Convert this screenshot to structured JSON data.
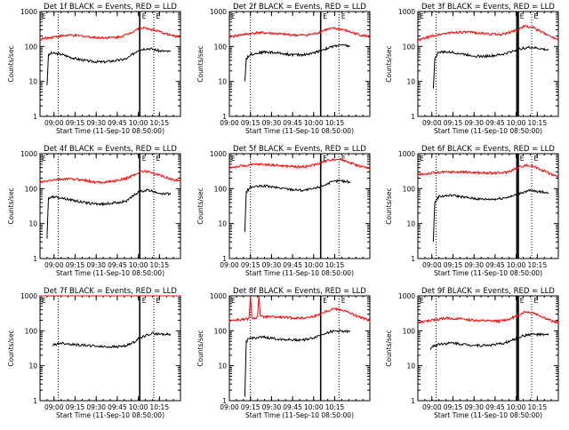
{
  "chart_data": [
    {
      "type": "line",
      "title": "Det 1f BLACK = Events, RED = LLD",
      "xlabel": "Start Time (11-Sep-10 08:50:00)",
      "ylabel": "Counts/sec",
      "yscale": "log",
      "ylim": [
        1,
        1000
      ],
      "x_ticks": [
        "09:00",
        "09:15",
        "09:30",
        "09:45",
        "10:00",
        "10:15"
      ],
      "y_ticks": [
        "1",
        "10",
        "100",
        "1000"
      ],
      "xlim_min": [
        0,
        100
      ],
      "tick_min": [
        10,
        25,
        40,
        55,
        70,
        85
      ],
      "dotted_lines_min": [
        13,
        81
      ],
      "solid_lines_min": [
        71
      ],
      "markers": [
        "E",
        "E"
      ],
      "marker_min": [
        72,
        82
      ],
      "series": [
        {
          "name": "",
          "color": "#000000",
          "start_min": 5,
          "end_min": 93,
          "x": [
            5,
            6,
            8,
            15,
            25,
            35,
            45,
            55,
            62,
            66,
            70,
            76,
            80,
            85,
            92
          ],
          "y": [
            8,
            55,
            65,
            60,
            45,
            38,
            36,
            40,
            45,
            60,
            80,
            88,
            85,
            75,
            72
          ]
        },
        {
          "name": "",
          "color": "#ff0000",
          "start_min": 0,
          "end_min": 100,
          "x": [
            0,
            10,
            20,
            30,
            40,
            50,
            55,
            62,
            68,
            72,
            78,
            84,
            90,
            95,
            100
          ],
          "y": [
            160,
            190,
            210,
            200,
            180,
            180,
            185,
            220,
            300,
            350,
            320,
            270,
            230,
            200,
            190
          ]
        }
      ]
    },
    {
      "type": "line",
      "title": "Det 2f BLACK = Events, RED = LLD",
      "xlabel": "Start Time (11-Sep-10 08:50:00)",
      "ylabel": "Counts/sec",
      "yscale": "log",
      "ylim": [
        1,
        1000
      ],
      "x_ticks": [
        "09:00",
        "09:15",
        "09:30",
        "09:45",
        "10:00",
        "10:15"
      ],
      "y_ticks": [
        "1",
        "10",
        "100",
        "1000"
      ],
      "xlim_min": [
        0,
        100
      ],
      "tick_min": [
        0,
        15,
        30,
        45,
        60,
        75
      ],
      "dotted_lines_min": [
        15,
        78
      ],
      "solid_lines_min": [
        65
      ],
      "markers": [
        "E",
        "E"
      ],
      "marker_min": [
        66,
        79
      ],
      "series": [
        {
          "name": "",
          "color": "#000000",
          "start_min": 11,
          "end_min": 86,
          "x": [
            11,
            12,
            15,
            25,
            35,
            45,
            52,
            58,
            62,
            66,
            72,
            78,
            84,
            86
          ],
          "y": [
            10,
            45,
            60,
            70,
            65,
            58,
            58,
            62,
            70,
            80,
            95,
            110,
            105,
            100
          ]
        },
        {
          "name": "",
          "color": "#ff0000",
          "start_min": 0,
          "end_min": 100,
          "x": [
            0,
            10,
            20,
            30,
            40,
            50,
            56,
            62,
            68,
            74,
            80,
            86,
            92,
            100
          ],
          "y": [
            190,
            220,
            250,
            240,
            220,
            210,
            215,
            240,
            300,
            330,
            310,
            260,
            220,
            190
          ]
        }
      ]
    },
    {
      "type": "line",
      "title": "Det 3f BLACK = Events, RED = LLD",
      "xlabel": "Start Time (11-Sep-10 08:50:00)",
      "ylabel": "Counts/sec",
      "yscale": "log",
      "ylim": [
        1,
        1000
      ],
      "x_ticks": [
        "09:00",
        "09:15",
        "09:30",
        "09:45",
        "10:00",
        "10:15"
      ],
      "y_ticks": [
        "1",
        "10",
        "100",
        "1000"
      ],
      "xlim_min": [
        0,
        100
      ],
      "tick_min": [
        10,
        25,
        40,
        55,
        70,
        85
      ],
      "dotted_lines_min": [
        13,
        81
      ],
      "solid_lines_min": [
        70.5,
        71.5
      ],
      "markers": [
        "E",
        "E"
      ],
      "marker_min": [
        72,
        82
      ],
      "series": [
        {
          "name": "",
          "color": "#000000",
          "start_min": 11,
          "end_min": 93,
          "x": [
            11,
            12,
            15,
            25,
            35,
            45,
            55,
            62,
            68,
            74,
            80,
            86,
            92
          ],
          "y": [
            6,
            45,
            70,
            68,
            58,
            52,
            55,
            62,
            75,
            88,
            95,
            88,
            80
          ]
        },
        {
          "name": "",
          "color": "#ff0000",
          "start_min": 0,
          "end_min": 100,
          "x": [
            0,
            10,
            20,
            30,
            40,
            50,
            58,
            64,
            70,
            76,
            82,
            88,
            94,
            100
          ],
          "y": [
            150,
            200,
            240,
            260,
            250,
            230,
            220,
            240,
            300,
            380,
            350,
            260,
            200,
            160
          ]
        }
      ]
    },
    {
      "type": "line",
      "title": "Det 4f BLACK = Events, RED = LLD",
      "xlabel": "Start Time (11-Sep-10 08:50:00)",
      "ylabel": "Counts/sec",
      "yscale": "log",
      "ylim": [
        1,
        1000
      ],
      "x_ticks": [
        "09:00",
        "09:15",
        "09:30",
        "09:45",
        "10:00",
        "10:15"
      ],
      "y_ticks": [
        "1",
        "10",
        "100",
        "1000"
      ],
      "xlim_min": [
        0,
        100
      ],
      "tick_min": [
        10,
        25,
        40,
        55,
        70,
        85
      ],
      "dotted_lines_min": [
        13,
        81
      ],
      "solid_lines_min": [
        71
      ],
      "markers": [
        "E",
        "E"
      ],
      "marker_min": [
        72,
        82
      ],
      "series": [
        {
          "name": "",
          "color": "#000000",
          "start_min": 5,
          "end_min": 93,
          "x": [
            5,
            6,
            8,
            15,
            25,
            35,
            45,
            55,
            62,
            66,
            70,
            76,
            80,
            85,
            92
          ],
          "y": [
            4,
            50,
            60,
            55,
            45,
            38,
            36,
            40,
            45,
            60,
            80,
            90,
            85,
            75,
            70
          ]
        },
        {
          "name": "",
          "color": "#ff0000",
          "start_min": 0,
          "end_min": 100,
          "x": [
            0,
            10,
            20,
            30,
            40,
            50,
            55,
            62,
            68,
            72,
            78,
            84,
            90,
            95,
            100
          ],
          "y": [
            150,
            180,
            190,
            180,
            150,
            160,
            170,
            200,
            260,
            320,
            300,
            250,
            210,
            180,
            170
          ]
        }
      ]
    },
    {
      "type": "line",
      "title": "Det 5f BLACK = Events, RED = LLD",
      "xlabel": "Start Time (11-Sep-10 08:50:00)",
      "ylabel": "Counts/sec",
      "yscale": "log",
      "ylim": [
        1,
        1000
      ],
      "x_ticks": [
        "09:00",
        "09:15",
        "09:30",
        "09:45",
        "10:00",
        "10:15"
      ],
      "y_ticks": [
        "1",
        "10",
        "100",
        "1000"
      ],
      "xlim_min": [
        0,
        100
      ],
      "tick_min": [
        0,
        15,
        30,
        45,
        60,
        75
      ],
      "dotted_lines_min": [
        15,
        78
      ],
      "solid_lines_min": [
        65
      ],
      "markers": [
        "E",
        "E"
      ],
      "marker_min": [
        66,
        79
      ],
      "series": [
        {
          "name": "",
          "color": "#000000",
          "start_min": 11,
          "end_min": 86,
          "x": [
            11,
            12,
            15,
            25,
            35,
            45,
            52,
            58,
            62,
            66,
            72,
            78,
            84,
            86
          ],
          "y": [
            6,
            80,
            110,
            120,
            105,
            95,
            90,
            95,
            105,
            120,
            150,
            170,
            160,
            150
          ]
        },
        {
          "name": "",
          "color": "#ff0000",
          "start_min": 0,
          "end_min": 100,
          "x": [
            0,
            10,
            20,
            30,
            40,
            50,
            56,
            62,
            68,
            74,
            80,
            86,
            92,
            100
          ],
          "y": [
            400,
            450,
            500,
            480,
            440,
            420,
            440,
            500,
            600,
            700,
            680,
            560,
            450,
            380
          ]
        }
      ]
    },
    {
      "type": "line",
      "title": "Det 6f BLACK = Events, RED = LLD",
      "xlabel": "Start Time (11-Sep-10 08:50:00)",
      "ylabel": "Counts/sec",
      "yscale": "log",
      "ylim": [
        1,
        1000
      ],
      "x_ticks": [
        "09:00",
        "09:15",
        "09:30",
        "09:45",
        "10:00",
        "10:15"
      ],
      "y_ticks": [
        "1",
        "10",
        "100",
        "1000"
      ],
      "xlim_min": [
        0,
        100
      ],
      "tick_min": [
        10,
        25,
        40,
        55,
        70,
        85
      ],
      "dotted_lines_min": [
        13,
        81
      ],
      "solid_lines_min": [
        70.5,
        71.5
      ],
      "markers": [
        "E",
        "E"
      ],
      "marker_min": [
        72,
        82
      ],
      "series": [
        {
          "name": "",
          "color": "#000000",
          "start_min": 11,
          "end_min": 93,
          "x": [
            11,
            12,
            15,
            25,
            35,
            45,
            55,
            62,
            68,
            74,
            80,
            86,
            92
          ],
          "y": [
            3,
            40,
            60,
            65,
            55,
            50,
            50,
            55,
            62,
            78,
            88,
            82,
            78
          ]
        },
        {
          "name": "",
          "color": "#ff0000",
          "start_min": 0,
          "end_min": 100,
          "x": [
            0,
            10,
            20,
            30,
            40,
            50,
            58,
            64,
            70,
            76,
            82,
            88,
            94,
            100
          ],
          "y": [
            250,
            280,
            300,
            300,
            290,
            280,
            280,
            300,
            380,
            470,
            440,
            350,
            270,
            220
          ]
        }
      ]
    },
    {
      "type": "line",
      "title": "Det 7f BLACK = Events, RED = LLD",
      "xlabel": "Start Time (11-Sep-10 08:50:00)",
      "ylabel": "Counts/sec",
      "yscale": "log",
      "ylim": [
        1,
        1000
      ],
      "x_ticks": [
        "09:00",
        "09:15",
        "09:30",
        "09:45",
        "10:00",
        "10:15"
      ],
      "y_ticks": [
        "1",
        "10",
        "100",
        "1000"
      ],
      "xlim_min": [
        0,
        100
      ],
      "tick_min": [
        10,
        25,
        40,
        55,
        70,
        85
      ],
      "dotted_lines_min": [
        13,
        81
      ],
      "solid_lines_min": [
        71
      ],
      "markers": [
        "E",
        "E"
      ],
      "marker_min": [
        72,
        82
      ],
      "series": [
        {
          "name": "",
          "color": "#000000",
          "start_min": 9,
          "end_min": 93,
          "x": [
            9,
            10,
            15,
            25,
            35,
            45,
            55,
            62,
            66,
            70,
            76,
            80,
            85,
            92
          ],
          "y": [
            35,
            40,
            45,
            40,
            38,
            35,
            35,
            38,
            45,
            60,
            75,
            85,
            80,
            80
          ]
        },
        {
          "name": "",
          "color": "#ff0000",
          "start_min": 0,
          "end_min": 100,
          "x": [
            0,
            10,
            20,
            30,
            40,
            50,
            60,
            70,
            80,
            90,
            100
          ],
          "y": [
            1000,
            1000,
            1000,
            1000,
            1000,
            1000,
            1000,
            1000,
            1000,
            1000,
            1000
          ]
        }
      ]
    },
    {
      "type": "line",
      "title": "Det 8f BLACK = Events, RED = LLD",
      "xlabel": "Start Time (11-Sep-10 08:50:00)",
      "ylabel": "Counts/sec",
      "yscale": "log",
      "ylim": [
        1,
        1000
      ],
      "x_ticks": [
        "09:00",
        "09:15",
        "09:30",
        "09:45",
        "10:00",
        "10:15"
      ],
      "y_ticks": [
        "1",
        "10",
        "100",
        "1000"
      ],
      "xlim_min": [
        0,
        100
      ],
      "tick_min": [
        0,
        15,
        30,
        45,
        60,
        75
      ],
      "dotted_lines_min": [
        15,
        78
      ],
      "solid_lines_min": [
        65
      ],
      "markers": [
        "E",
        "E"
      ],
      "marker_min": [
        66,
        79
      ],
      "series": [
        {
          "name": "",
          "color": "#000000",
          "start_min": 11,
          "end_min": 86,
          "x": [
            11,
            12,
            15,
            25,
            35,
            45,
            52,
            58,
            62,
            66,
            72,
            78,
            84,
            86
          ],
          "y": [
            1.2,
            50,
            62,
            65,
            58,
            55,
            55,
            60,
            68,
            80,
            95,
            100,
            95,
            92
          ]
        },
        {
          "name": "",
          "color": "#ff0000",
          "start_min": 0,
          "end_min": 100,
          "x": [
            0,
            10,
            14,
            15,
            16,
            20,
            21,
            22,
            30,
            40,
            50,
            56,
            62,
            68,
            74,
            80,
            86,
            92,
            100
          ],
          "y": [
            200,
            210,
            220,
            1000,
            230,
            240,
            1000,
            250,
            250,
            240,
            230,
            240,
            270,
            350,
            430,
            400,
            320,
            250,
            200
          ]
        }
      ]
    },
    {
      "type": "line",
      "title": "Det 9f BLACK = Events, RED = LLD",
      "xlabel": "Start Time (11-Sep-10 08:50:00)",
      "ylabel": "Counts/sec",
      "yscale": "log",
      "ylim": [
        1,
        1000
      ],
      "x_ticks": [
        "09:00",
        "09:15",
        "09:30",
        "09:45",
        "10:00",
        "10:15"
      ],
      "y_ticks": [
        "1",
        "10",
        "100",
        "1000"
      ],
      "xlim_min": [
        0,
        100
      ],
      "tick_min": [
        10,
        25,
        40,
        55,
        70,
        85
      ],
      "dotted_lines_min": [
        13,
        81
      ],
      "solid_lines_min": [
        70.5,
        71.5
      ],
      "markers": [
        "E",
        "E"
      ],
      "marker_min": [
        72,
        82
      ],
      "series": [
        {
          "name": "",
          "color": "#000000",
          "start_min": 9,
          "end_min": 93,
          "x": [
            9,
            10,
            15,
            25,
            35,
            45,
            55,
            62,
            68,
            74,
            80,
            86,
            92
          ],
          "y": [
            30,
            35,
            42,
            45,
            40,
            38,
            40,
            45,
            55,
            70,
            80,
            78,
            76
          ]
        },
        {
          "name": "",
          "color": "#ff0000",
          "start_min": 0,
          "end_min": 100,
          "x": [
            0,
            10,
            20,
            30,
            40,
            50,
            58,
            64,
            70,
            76,
            82,
            88,
            94,
            100
          ],
          "y": [
            170,
            200,
            230,
            220,
            200,
            190,
            190,
            210,
            260,
            350,
            330,
            260,
            200,
            170
          ]
        }
      ]
    }
  ]
}
